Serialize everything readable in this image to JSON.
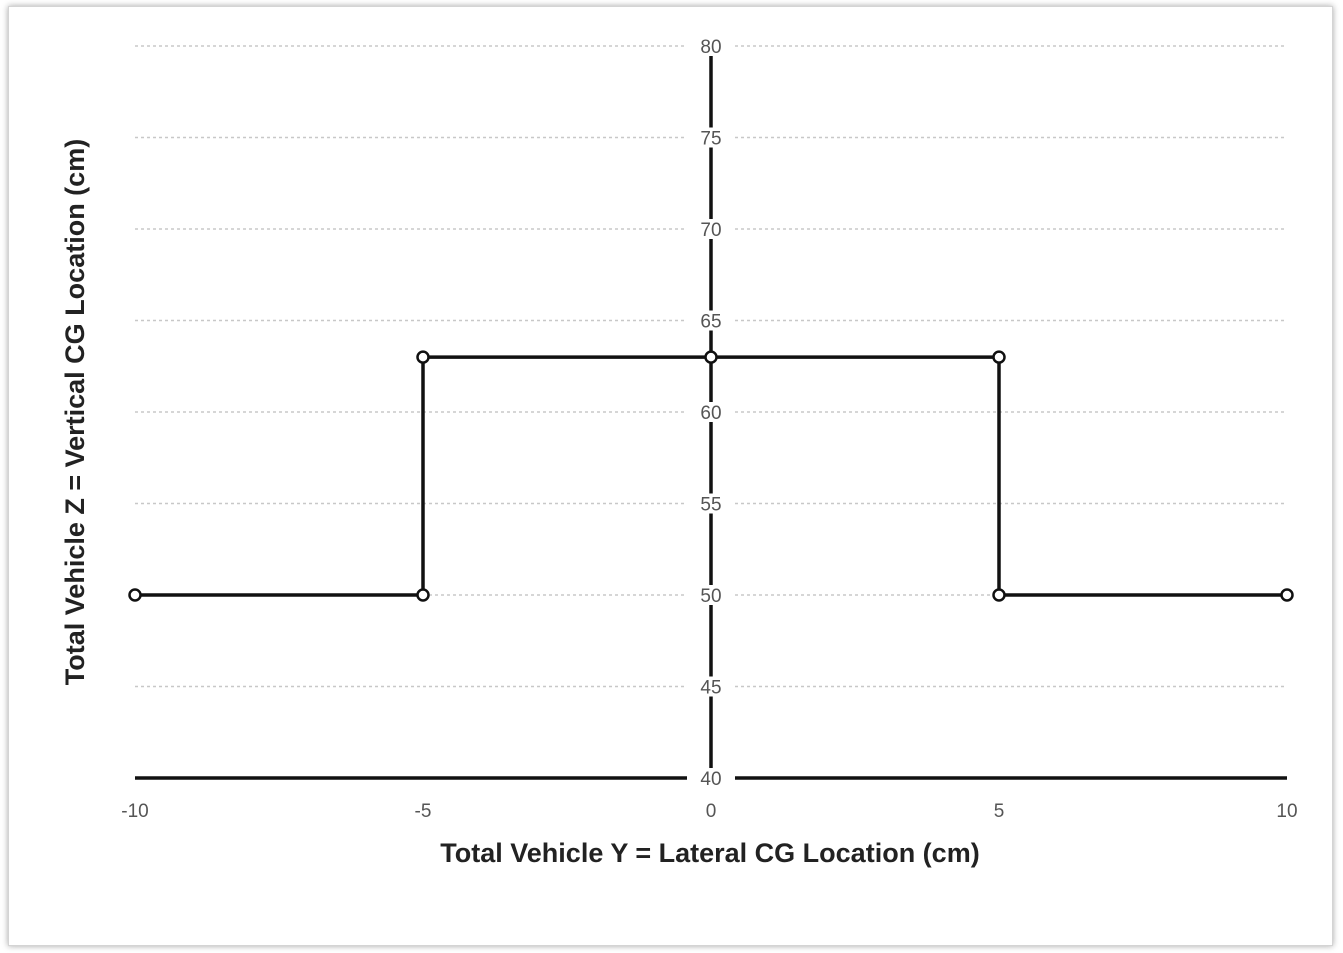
{
  "chart_data": {
    "type": "line",
    "title": "",
    "xlabel": "Total Vehicle Y =  Lateral CG Location (cm)",
    "ylabel": "Total Vehicle Z = Vertical CG Location (cm)",
    "xlim": [
      -10,
      10
    ],
    "ylim": [
      40,
      80
    ],
    "xticks": [
      -10,
      -5,
      0,
      5,
      10
    ],
    "yticks": [
      40,
      45,
      50,
      55,
      60,
      65,
      70,
      75,
      80
    ],
    "grid": "horizontal dotted",
    "legend": "none",
    "series": [
      {
        "x": [
          -10,
          -5,
          -5,
          0,
          5,
          5,
          10
        ],
        "y": [
          50,
          50,
          63,
          63,
          63,
          50,
          50
        ]
      }
    ],
    "colors": {
      "line": "#111111",
      "marker_fill": "#ffffff",
      "grid": "#c8c8c8",
      "tick_text": "#555555",
      "title_text": "#222222"
    }
  }
}
